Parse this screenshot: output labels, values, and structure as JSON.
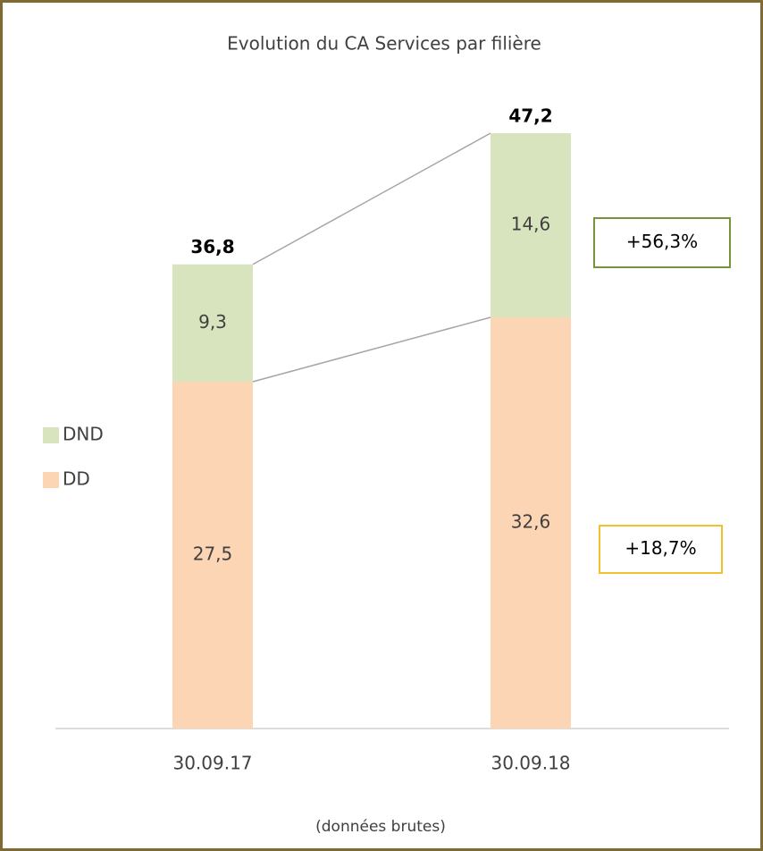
{
  "chart_data": {
    "type": "stacked_bar",
    "title": "Evolution du CA Services par filière",
    "subtitle": "(données brutes)",
    "categories": [
      "30.09.17",
      "30.09.18"
    ],
    "series": [
      {
        "name": "DD",
        "color": "#fcd5b5",
        "values": [
          27.5,
          32.6
        ],
        "value_labels": [
          "27,5",
          "32,6"
        ]
      },
      {
        "name": "DND",
        "color": "#d7e4bd",
        "values": [
          9.3,
          14.6
        ],
        "value_labels": [
          "9,3",
          "14,6"
        ]
      }
    ],
    "totals": {
      "values": [
        36.8,
        47.2
      ],
      "value_labels": [
        "36,8",
        "47,2"
      ]
    },
    "annotations": [
      {
        "text": "+56,3%",
        "color": "#77933c"
      },
      {
        "text": "+18,7%",
        "color": "#f2c12e"
      }
    ]
  }
}
